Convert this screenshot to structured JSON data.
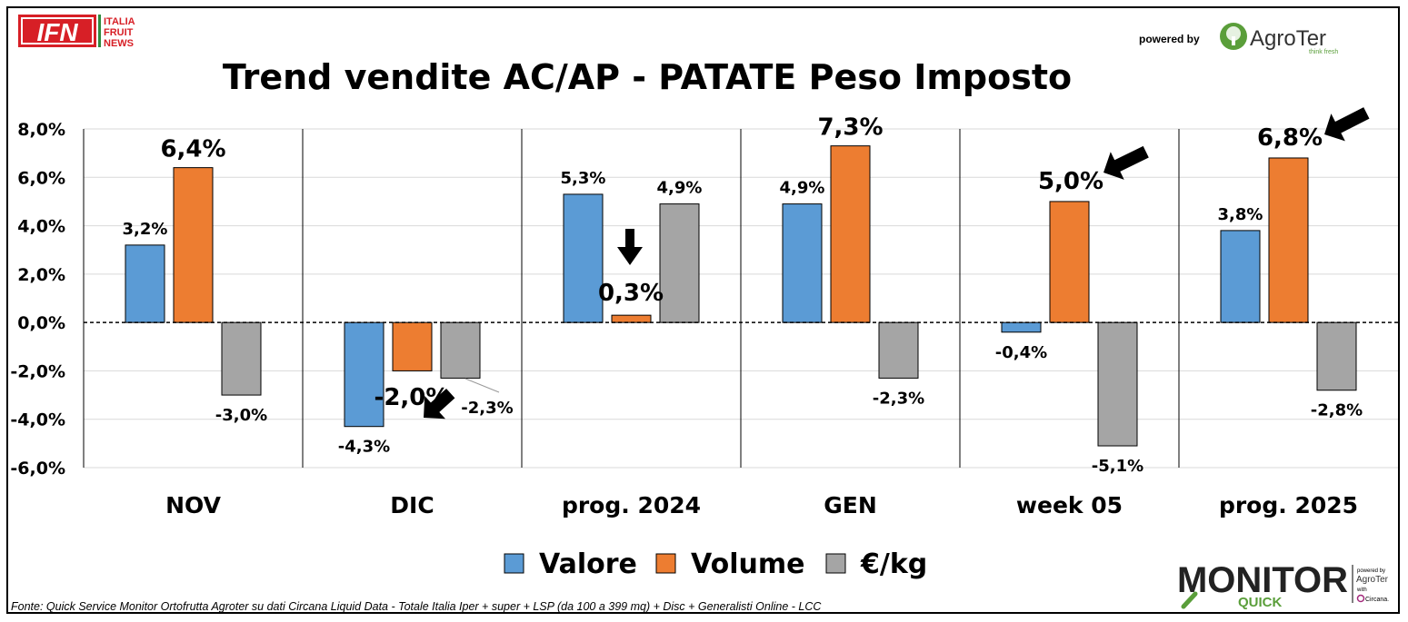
{
  "header": {
    "ifn_logo_letters": "IFN",
    "ifn_logo_lines": [
      "ITALIA",
      "FRUIT",
      "NEWS"
    ],
    "powered_by": "powered by",
    "agroter_name": "AgroTer",
    "agroter_tagline": "think fresh"
  },
  "chart_data": {
    "type": "bar",
    "title": "Trend vendite AC/AP - PATATE Peso Imposto",
    "categories": [
      "NOV",
      "DIC",
      "prog. 2024",
      "GEN",
      "week 05",
      "prog. 2025"
    ],
    "series": [
      {
        "name": "Valore",
        "color": "#5B9BD5",
        "values": [
          3.2,
          -4.3,
          5.3,
          4.9,
          -0.4,
          3.8
        ],
        "labels": [
          "3,2%",
          "-4,3%",
          "5,3%",
          "4,9%",
          "-0,4%",
          "3,8%"
        ]
      },
      {
        "name": "Volume",
        "color": "#ED7D31",
        "values": [
          6.4,
          -2.0,
          0.3,
          7.3,
          5.0,
          6.8
        ],
        "labels": [
          "6,4%",
          "-2,0%",
          "0,3%",
          "7,3%",
          "5,0%",
          "6,8%"
        ]
      },
      {
        "name": "€/kg",
        "color": "#A5A5A5",
        "values": [
          -3.0,
          -2.3,
          4.9,
          -2.3,
          -5.1,
          -2.8
        ],
        "labels": [
          "-3,0%",
          "-2,3%",
          "4,9%",
          "-2,3%",
          "-5,1%",
          "-2,8%"
        ]
      }
    ],
    "ylim": [
      -6,
      8
    ],
    "yticks": [
      8,
      6,
      4,
      2,
      0,
      -2,
      -4,
      -6
    ],
    "ytick_labels": [
      "8,0%",
      "6,0%",
      "4,0%",
      "2,0%",
      "0,0%",
      "-2,0%",
      "-4,0%",
      "-6,0%"
    ],
    "grid": true,
    "legend": "bottom",
    "zero_line": "dashed"
  },
  "footer": {
    "source": "Fonte: Quick Service Monitor Ortofrutta Agroter su dati Circana Liquid Data - Totale Italia Iper + super + LSP (da 100 a 399 mq) + Disc + Generalisti Online - LCC",
    "monitor_word": "MONITOR",
    "quick_word": "QUICK",
    "side_powered": "powered by",
    "side_agroter": "AgroTer",
    "side_with": "with",
    "side_circana": "Circana."
  }
}
